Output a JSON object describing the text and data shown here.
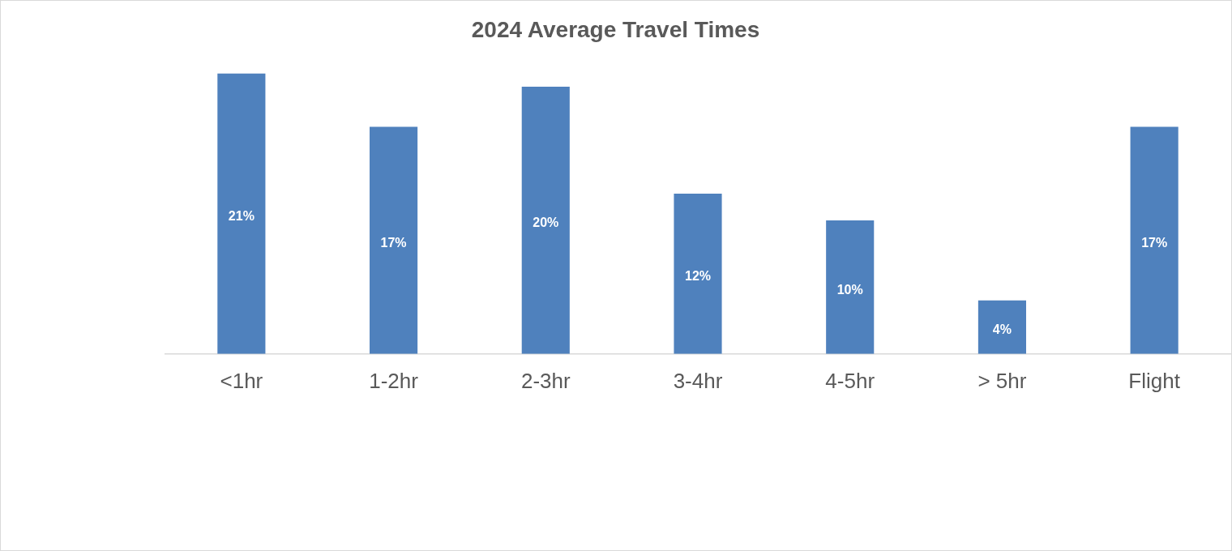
{
  "chart_data": {
    "type": "bar",
    "title": "2024 Average Travel Times",
    "categories": [
      "<1hr",
      "1-2hr",
      "2-3hr",
      "3-4hr",
      "4-5hr",
      "> 5hr",
      "Flight"
    ],
    "values": [
      21,
      17,
      20,
      12,
      10,
      4,
      17
    ],
    "color": "#4f81bd",
    "value_labels": [
      "21%",
      "17%",
      "20%",
      "12%",
      "10%",
      "4%",
      "17%"
    ],
    "grid": false,
    "legend": false
  }
}
